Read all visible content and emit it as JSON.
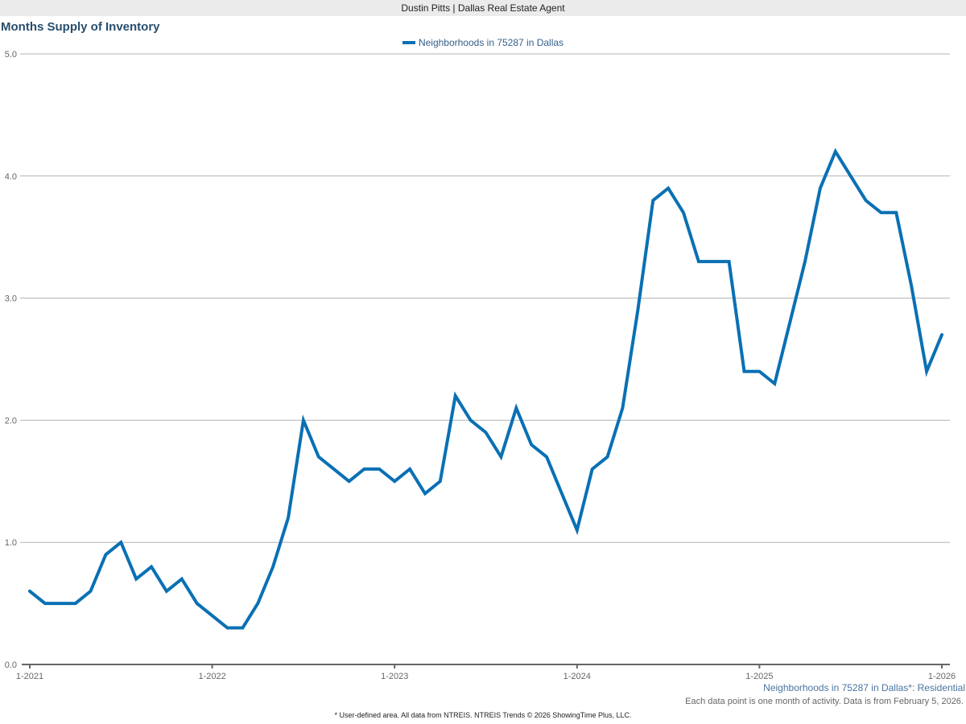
{
  "header": {
    "agent": "Dustin Pitts | Dallas Real Estate Agent"
  },
  "chart_title": "Months Supply of Inventory",
  "legend": {
    "label": "Neighborhoods in 75287 in Dallas",
    "color": "#0a70b4"
  },
  "notes": {
    "area": "Neighborhoods in 75287 in Dallas*: Residential",
    "data": "Each data point is one month of activity. Data is from February 5, 2026.",
    "footer": "* User-defined area. All data from NTREIS. NTREIS Trends © 2026 ShowingTime Plus, LLC."
  },
  "axis": {
    "y_ticks": [
      "0.0",
      "1.0",
      "2.0",
      "3.0",
      "4.0",
      "5.0"
    ],
    "x_ticks": [
      "1-2021",
      "1-2022",
      "1-2023",
      "1-2024",
      "1-2025",
      "1-2026"
    ]
  },
  "chart_data": {
    "type": "line",
    "title": "Months Supply of Inventory",
    "xlabel": "",
    "ylabel": "",
    "ylim": [
      0,
      5
    ],
    "grid": true,
    "legend_position": "top-center",
    "x_tick_labels": [
      "1-2021",
      "1-2022",
      "1-2023",
      "1-2024",
      "1-2025",
      "1-2026"
    ],
    "y_tick_labels": [
      "0.0",
      "1.0",
      "2.0",
      "3.0",
      "4.0",
      "5.0"
    ],
    "x": [
      "1-2021",
      "2-2021",
      "3-2021",
      "4-2021",
      "5-2021",
      "6-2021",
      "7-2021",
      "8-2021",
      "9-2021",
      "10-2021",
      "11-2021",
      "12-2021",
      "1-2022",
      "2-2022",
      "3-2022",
      "4-2022",
      "5-2022",
      "6-2022",
      "7-2022",
      "8-2022",
      "9-2022",
      "10-2022",
      "11-2022",
      "12-2022",
      "1-2023",
      "2-2023",
      "3-2023",
      "4-2023",
      "5-2023",
      "6-2023",
      "7-2023",
      "8-2023",
      "9-2023",
      "10-2023",
      "11-2023",
      "12-2023",
      "1-2024",
      "2-2024",
      "3-2024",
      "4-2024",
      "5-2024",
      "6-2024",
      "7-2024",
      "8-2024",
      "9-2024",
      "10-2024",
      "11-2024",
      "12-2024",
      "1-2025",
      "2-2025",
      "3-2025",
      "4-2025",
      "5-2025",
      "6-2025",
      "7-2025",
      "8-2025",
      "9-2025",
      "10-2025",
      "11-2025",
      "12-2025",
      "1-2026"
    ],
    "series": [
      {
        "name": "Neighborhoods in 75287 in Dallas",
        "color": "#0a70b4",
        "values": [
          0.6,
          0.5,
          0.5,
          0.5,
          0.6,
          0.9,
          1.0,
          0.7,
          0.8,
          0.6,
          0.7,
          0.5,
          0.4,
          0.3,
          0.3,
          0.5,
          0.8,
          1.2,
          2.0,
          1.7,
          1.6,
          1.5,
          1.6,
          1.6,
          1.5,
          1.6,
          1.4,
          1.5,
          2.2,
          2.0,
          1.9,
          1.7,
          2.1,
          1.8,
          1.7,
          1.4,
          1.1,
          1.6,
          1.7,
          2.1,
          2.9,
          3.8,
          3.9,
          3.7,
          3.3,
          3.3,
          3.3,
          2.4,
          2.4,
          2.3,
          2.8,
          3.3,
          3.9,
          4.2,
          4.0,
          3.8,
          3.7,
          3.7,
          3.1,
          2.4,
          2.7
        ]
      }
    ]
  }
}
